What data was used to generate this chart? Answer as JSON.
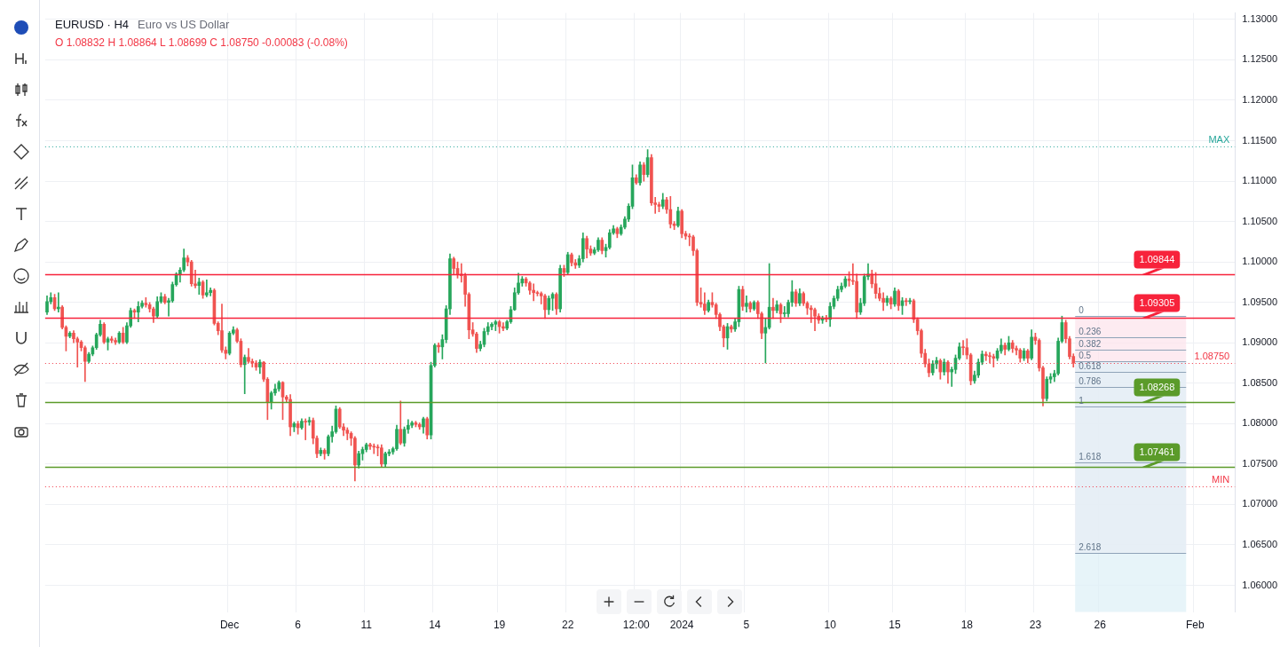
{
  "chart_data": {
    "type": "candlestick",
    "title": "EURUSD · H4",
    "subtitle": "Euro vs US Dollar",
    "annotations": [
      "O 1.08832 H 1.08864 L 1.08699 C 1.08750 -0.00083 (-0.08%)",
      {
        "text": "0",
        "y": 1.0933
      },
      {
        "text": "0.236",
        "y": 1.0907
      },
      {
        "text": "0.382",
        "y": 1.0891
      },
      {
        "text": "0.5",
        "y": 1.0877
      },
      {
        "text": "0.618",
        "y": 1.0864
      },
      {
        "text": "0.786",
        "y": 1.0845
      },
      {
        "text": "1",
        "y": 1.0821
      },
      {
        "text": "1.618",
        "y": 1.0752
      },
      {
        "text": "2.618",
        "y": 1.064
      }
    ],
    "categories": [
      null,
      null,
      null,
      null,
      null,
      null,
      null,
      null,
      null,
      null,
      null,
      null,
      null,
      null,
      null,
      null,
      null,
      null,
      null,
      null,
      null,
      null,
      null,
      null,
      null,
      null,
      null,
      null,
      null,
      null,
      null,
      null,
      null,
      null,
      null,
      null,
      null,
      null,
      null,
      null,
      null,
      null,
      null,
      null,
      null,
      null,
      null,
      null,
      "Dec",
      null,
      null,
      null,
      null,
      null,
      null,
      null,
      null,
      null,
      null,
      null,
      null,
      null,
      null,
      null,
      null,
      null,
      "6",
      null,
      null,
      null,
      null,
      null,
      null,
      null,
      null,
      null,
      null,
      null,
      null,
      null,
      null,
      null,
      null,
      null,
      "11",
      null,
      null,
      null,
      null,
      null,
      null,
      null,
      null,
      null,
      null,
      null,
      null,
      null,
      null,
      null,
      null,
      null,
      "14",
      null,
      null,
      null,
      null,
      null,
      null,
      null,
      null,
      null,
      null,
      null,
      null,
      null,
      null,
      null,
      null,
      "19",
      null,
      null,
      null,
      null,
      null,
      null,
      null,
      null,
      null,
      null,
      null,
      null,
      null,
      null,
      null,
      null,
      null,
      "22",
      null,
      null,
      null,
      null,
      null,
      null,
      null,
      null,
      null,
      null,
      null,
      null,
      null,
      null,
      null,
      null,
      null,
      "12:00",
      null,
      null,
      null,
      null,
      null,
      null,
      null,
      null,
      null,
      null,
      null,
      "2024",
      null,
      null,
      null,
      null,
      null,
      null,
      null,
      null,
      null,
      null,
      null,
      null,
      null,
      null,
      null,
      null,
      "5",
      null,
      null,
      null,
      null,
      null,
      null,
      null,
      null,
      null,
      null,
      null,
      null,
      null,
      null,
      null,
      null,
      null,
      null,
      null,
      null,
      null,
      "10",
      null,
      null,
      null,
      null,
      null,
      null,
      null,
      null,
      null,
      null,
      null,
      null,
      null,
      null,
      null,
      null,
      "15",
      null,
      null,
      null,
      null,
      null,
      null,
      null,
      null,
      null,
      null,
      null,
      null,
      null,
      null,
      null,
      null,
      null,
      null,
      "18",
      null,
      null,
      null,
      null,
      null,
      null,
      null,
      null,
      null,
      null,
      null,
      null,
      null,
      null,
      null,
      null,
      null,
      "23",
      null,
      null,
      null,
      null,
      null,
      null,
      null,
      null,
      null,
      null,
      null,
      null,
      null,
      null,
      null,
      null,
      "26",
      null,
      null,
      null,
      null,
      null,
      null,
      null,
      null,
      null,
      null,
      null,
      null,
      null,
      null,
      null,
      null,
      null,
      null,
      null,
      null,
      null,
      null,
      null,
      null,
      "Feb",
      null,
      null,
      null,
      null,
      null,
      null,
      null,
      null,
      null,
      null
    ],
    "ohlc": [
      [
        1.0938,
        1.0958,
        1.0935,
        1.0951
      ],
      [
        1.0951,
        1.0962,
        1.0948,
        1.0956
      ],
      [
        1.0956,
        1.096,
        1.094,
        1.0942
      ],
      [
        1.0942,
        1.0962,
        1.0938,
        1.0944
      ],
      [
        1.0944,
        1.0946,
        1.0917,
        1.0919
      ],
      [
        1.0919,
        1.0921,
        1.089,
        1.0908
      ],
      [
        1.0908,
        1.0914,
        1.0906,
        1.0912
      ],
      [
        1.0912,
        1.0915,
        1.09,
        1.0905
      ],
      [
        1.0905,
        1.0907,
        1.087,
        1.0901
      ],
      [
        1.0901,
        1.0903,
        1.089,
        1.0894
      ],
      [
        1.0894,
        1.0896,
        1.0852,
        1.0877
      ],
      [
        1.0877,
        1.0888,
        1.0875,
        1.0886
      ],
      [
        1.0886,
        1.0896,
        1.0884,
        1.0894
      ],
      [
        1.0894,
        1.0912,
        1.0892,
        1.091
      ],
      [
        1.091,
        1.0928,
        1.0908,
        1.0923
      ],
      [
        1.0923,
        1.0925,
        1.0899,
        1.0901
      ],
      [
        1.0901,
        1.0907,
        1.0891,
        1.0905
      ],
      [
        1.0905,
        1.0908,
        1.09,
        1.0903
      ],
      [
        1.0903,
        1.0906,
        1.0898,
        1.0901
      ],
      [
        1.0901,
        1.0914,
        1.0899,
        1.0912
      ],
      [
        1.0912,
        1.0919,
        1.0899,
        1.0901
      ],
      [
        1.0901,
        1.0925,
        1.0899,
        1.0921
      ],
      [
        1.0921,
        1.0943,
        1.0919,
        1.094
      ],
      [
        1.094,
        1.0942,
        1.093,
        1.0938
      ],
      [
        1.0938,
        1.0951,
        1.0926,
        1.0945
      ],
      [
        1.0945,
        1.0952,
        1.0943,
        1.0949
      ],
      [
        1.0949,
        1.0956,
        1.0944,
        1.0947
      ],
      [
        1.0947,
        1.095,
        1.0938,
        1.0942
      ],
      [
        1.0942,
        1.0944,
        1.0925,
        1.0933
      ],
      [
        1.0933,
        1.0957,
        1.0931,
        1.0951
      ],
      [
        1.0951,
        1.0962,
        1.0949,
        1.0957
      ],
      [
        1.0957,
        1.096,
        1.0948,
        1.095
      ],
      [
        1.095,
        1.0955,
        1.0933,
        1.0952
      ],
      [
        1.0952,
        1.0975,
        1.095,
        1.0972
      ],
      [
        1.0972,
        1.0987,
        1.097,
        1.0985
      ],
      [
        1.0985,
        1.0993,
        1.0975,
        1.099
      ],
      [
        1.099,
        1.1016,
        1.0988,
        1.1005
      ],
      [
        1.1005,
        1.1008,
        1.0995,
        1.1
      ],
      [
        1.1,
        1.1002,
        1.097,
        1.0973
      ],
      [
        1.0973,
        1.099,
        1.0968,
        1.0971
      ],
      [
        1.0971,
        1.098,
        1.096,
        1.0975
      ],
      [
        1.0975,
        1.0977,
        1.0955,
        1.0959
      ],
      [
        1.0959,
        1.0978,
        1.0957,
        1.0962
      ],
      [
        1.0962,
        1.0968,
        1.0958,
        1.0965
      ],
      [
        1.0965,
        1.0967,
        1.0922,
        1.0924
      ],
      [
        1.0924,
        1.0926,
        1.091,
        1.0915
      ],
      [
        1.0915,
        1.0948,
        1.0888,
        1.0891
      ],
      [
        1.0891,
        1.0895,
        1.088,
        1.0887
      ],
      [
        1.0887,
        1.0914,
        1.0885,
        1.0912
      ],
      [
        1.0912,
        1.092,
        1.091,
        1.0916
      ],
      [
        1.0916,
        1.0918,
        1.09,
        1.0902
      ],
      [
        1.0902,
        1.0905,
        1.087,
        1.0873
      ],
      [
        1.0873,
        1.0885,
        1.0837,
        1.0882
      ],
      [
        1.0882,
        1.0893,
        1.0875,
        1.0877
      ],
      [
        1.0877,
        1.088,
        1.087,
        1.0875
      ],
      [
        1.0875,
        1.0878,
        1.0866,
        1.087
      ],
      [
        1.087,
        1.0879,
        1.0862,
        1.0876
      ],
      [
        1.0876,
        1.0877,
        1.0852,
        1.0855
      ],
      [
        1.0855,
        1.0857,
        1.0805,
        1.0826
      ],
      [
        1.0826,
        1.084,
        1.0818,
        1.0838
      ],
      [
        1.0838,
        1.0849,
        1.0835,
        1.0843
      ],
      [
        1.0843,
        1.0853,
        1.084,
        1.0851
      ],
      [
        1.0851,
        1.0852,
        1.0805,
        1.0833
      ],
      [
        1.0833,
        1.0835,
        1.0826,
        1.083
      ],
      [
        1.083,
        1.0836,
        1.0785,
        1.0796
      ],
      [
        1.0796,
        1.0802,
        1.079,
        1.08
      ],
      [
        1.08,
        1.0803,
        1.0787,
        1.0795
      ],
      [
        1.0795,
        1.0806,
        1.0793,
        1.0803
      ],
      [
        1.0803,
        1.0806,
        1.078,
        1.0802
      ],
      [
        1.0802,
        1.0808,
        1.0798,
        1.0804
      ],
      [
        1.0804,
        1.0807,
        1.0775,
        1.0782
      ],
      [
        1.0782,
        1.0785,
        1.0758,
        1.0763
      ],
      [
        1.0763,
        1.077,
        1.076,
        1.0767
      ],
      [
        1.0767,
        1.0769,
        1.0756,
        1.0763
      ],
      [
        1.0763,
        1.0786,
        1.076,
        1.0784
      ],
      [
        1.0784,
        1.0797,
        1.0777,
        1.079
      ],
      [
        1.079,
        1.0822,
        1.0788,
        1.0818
      ],
      [
        1.0818,
        1.082,
        1.0794,
        1.0796
      ],
      [
        1.0796,
        1.08,
        1.0785,
        1.0792
      ],
      [
        1.0792,
        1.0795,
        1.078,
        1.0788
      ],
      [
        1.0788,
        1.079,
        1.0773,
        1.0782
      ],
      [
        1.0782,
        1.0784,
        1.0729,
        1.0749
      ],
      [
        1.0749,
        1.0766,
        1.0745,
        1.0763
      ],
      [
        1.0763,
        1.0771,
        1.0755,
        1.0768
      ],
      [
        1.0768,
        1.0776,
        1.0765,
        1.0774
      ],
      [
        1.0774,
        1.0776,
        1.0768,
        1.0772
      ],
      [
        1.0772,
        1.0775,
        1.0763,
        1.0771
      ],
      [
        1.0771,
        1.0774,
        1.076,
        1.077
      ],
      [
        1.077,
        1.0774,
        1.0746,
        1.075
      ],
      [
        1.075,
        1.0765,
        1.0747,
        1.0763
      ],
      [
        1.0763,
        1.0768,
        1.076,
        1.0765
      ],
      [
        1.0765,
        1.0771,
        1.0762,
        1.0769
      ],
      [
        1.0769,
        1.0798,
        1.0767,
        1.0793
      ],
      [
        1.0793,
        1.0828,
        1.0774,
        1.0776
      ],
      [
        1.0776,
        1.0796,
        1.0772,
        1.0793
      ],
      [
        1.0793,
        1.0805,
        1.0788,
        1.0798
      ],
      [
        1.0798,
        1.0803,
        1.0795,
        1.0801
      ],
      [
        1.0801,
        1.0803,
        1.0796,
        1.0799
      ],
      [
        1.0799,
        1.0801,
        1.0793,
        1.0796
      ],
      [
        1.0796,
        1.0808,
        1.0788,
        1.0806
      ],
      [
        1.0806,
        1.0808,
        1.0781,
        1.0786
      ],
      [
        1.0786,
        1.0876,
        1.0781,
        1.0872
      ],
      [
        1.0872,
        1.0899,
        1.087,
        1.0897
      ],
      [
        1.0897,
        1.09,
        1.0888,
        1.0895
      ],
      [
        1.0895,
        1.091,
        1.088,
        1.0904
      ],
      [
        1.0904,
        1.0946,
        1.09,
        1.0942
      ],
      [
        1.0942,
        1.101,
        1.0935,
        1.1004
      ],
      [
        1.1004,
        1.1006,
        1.0985,
        1.0992
      ],
      [
        1.0992,
        1.1,
        1.098,
        1.0985
      ],
      [
        1.0985,
        1.0998,
        1.0975,
        1.0983
      ],
      [
        1.0983,
        1.0986,
        1.0945,
        1.096
      ],
      [
        1.096,
        1.0962,
        1.0905,
        1.0916
      ],
      [
        1.0916,
        1.0925,
        1.0908,
        1.0911
      ],
      [
        1.0911,
        1.0913,
        1.0888,
        1.0893
      ],
      [
        1.0893,
        1.0902,
        1.089,
        1.0898
      ],
      [
        1.0898,
        1.0918,
        1.0895,
        1.0914
      ],
      [
        1.0914,
        1.0925,
        1.091,
        1.092
      ],
      [
        1.092,
        1.0925,
        1.0916,
        1.0923
      ],
      [
        1.0923,
        1.0928,
        1.0915,
        1.0926
      ],
      [
        1.0926,
        1.0928,
        1.0912,
        1.092
      ],
      [
        1.092,
        1.0925,
        1.0915,
        1.0918
      ],
      [
        1.0918,
        1.0928,
        1.0916,
        1.0926
      ],
      [
        1.0926,
        1.0945,
        1.0924,
        1.0941
      ],
      [
        1.0941,
        1.0968,
        1.094,
        1.0962
      ],
      [
        1.0962,
        1.0986,
        1.096,
        1.0974
      ],
      [
        1.0974,
        1.0982,
        1.097,
        1.0979
      ],
      [
        1.0979,
        1.0981,
        1.097,
        1.0974
      ],
      [
        1.0974,
        1.0976,
        1.096,
        1.0965
      ],
      [
        1.0965,
        1.0973,
        1.0952,
        1.0962
      ],
      [
        1.0962,
        1.0964,
        1.0958,
        1.0961
      ],
      [
        1.0961,
        1.0963,
        1.0948,
        1.0958
      ],
      [
        1.0958,
        1.096,
        1.093,
        1.0941
      ],
      [
        1.0941,
        1.0958,
        1.0935,
        1.0955
      ],
      [
        1.0955,
        1.0962,
        1.094,
        1.096
      ],
      [
        1.096,
        1.0962,
        1.0935,
        1.0942
      ],
      [
        1.0942,
        1.0996,
        1.0938,
        1.0992
      ],
      [
        1.0992,
        1.0996,
        1.0982,
        1.0987
      ],
      [
        1.0987,
        1.1012,
        1.0985,
        1.1009
      ],
      [
        1.1009,
        1.1011,
        1.0995,
        1.0999
      ],
      [
        1.0999,
        1.1003,
        1.0992,
        1.0996
      ],
      [
        1.0996,
        1.1008,
        1.0993,
        1.1004
      ],
      [
        1.1004,
        1.1036,
        1.1,
        1.1029
      ],
      [
        1.1029,
        1.1032,
        1.1005,
        1.1016
      ],
      [
        1.1016,
        1.102,
        1.1008,
        1.1011
      ],
      [
        1.1011,
        1.1018,
        1.1009,
        1.1015
      ],
      [
        1.1015,
        1.103,
        1.1013,
        1.1027
      ],
      [
        1.1027,
        1.103,
        1.101,
        1.1014
      ],
      [
        1.1014,
        1.1022,
        1.1006,
        1.1018
      ],
      [
        1.1018,
        1.104,
        1.1016,
        1.1036
      ],
      [
        1.1036,
        1.1045,
        1.1034,
        1.1041
      ],
      [
        1.1041,
        1.1043,
        1.103,
        1.1035
      ],
      [
        1.1035,
        1.1046,
        1.1033,
        1.1043
      ],
      [
        1.1043,
        1.1056,
        1.1041,
        1.1053
      ],
      [
        1.1053,
        1.1072,
        1.105,
        1.1069
      ],
      [
        1.1069,
        1.112,
        1.1066,
        1.1104
      ],
      [
        1.1104,
        1.1108,
        1.1096,
        1.1098
      ],
      [
        1.1098,
        1.1124,
        1.1095,
        1.112
      ],
      [
        1.112,
        1.1123,
        1.11,
        1.1108
      ],
      [
        1.1108,
        1.1139,
        1.1105,
        1.1129
      ],
      [
        1.1129,
        1.1133,
        1.107,
        1.1073
      ],
      [
        1.1073,
        1.108,
        1.106,
        1.1071
      ],
      [
        1.1071,
        1.1074,
        1.1062,
        1.1069
      ],
      [
        1.1069,
        1.1085,
        1.1066,
        1.1077
      ],
      [
        1.1077,
        1.108,
        1.106,
        1.1065
      ],
      [
        1.1065,
        1.1081,
        1.1042,
        1.1047
      ],
      [
        1.1047,
        1.105,
        1.104,
        1.1045
      ],
      [
        1.1045,
        1.1068,
        1.1043,
        1.1063
      ],
      [
        1.1063,
        1.1065,
        1.103,
        1.1035
      ],
      [
        1.1035,
        1.1038,
        1.1028,
        1.1032
      ],
      [
        1.1032,
        1.1035,
        1.102,
        1.1031
      ],
      [
        1.1031,
        1.1033,
        1.1008,
        1.1014
      ],
      [
        1.1014,
        1.1016,
        1.0946,
        1.095
      ],
      [
        1.095,
        1.0968,
        1.0944,
        1.0948
      ],
      [
        1.0948,
        1.0962,
        1.0935,
        1.094
      ],
      [
        1.094,
        1.0953,
        1.0938,
        1.095
      ],
      [
        1.095,
        1.0962,
        1.0944,
        1.0947
      ],
      [
        1.0947,
        1.0949,
        1.093,
        1.0935
      ],
      [
        1.0935,
        1.0937,
        1.0915,
        1.092
      ],
      [
        1.092,
        1.0922,
        1.0895,
        1.0906
      ],
      [
        1.0906,
        1.0924,
        1.0892,
        1.092
      ],
      [
        1.092,
        1.0922,
        1.0913,
        1.0917
      ],
      [
        1.0917,
        1.093,
        1.0914,
        1.0926
      ],
      [
        1.0926,
        1.097,
        1.092,
        1.0966
      ],
      [
        1.0966,
        1.097,
        1.094,
        1.0945
      ],
      [
        1.0945,
        1.0958,
        1.0938,
        1.0949
      ],
      [
        1.0949,
        1.0951,
        1.0938,
        1.0942
      ],
      [
        1.0942,
        1.0952,
        1.094,
        1.095
      ],
      [
        1.095,
        1.0952,
        1.093,
        1.0936
      ],
      [
        1.0936,
        1.0938,
        1.0905,
        1.0912
      ],
      [
        1.0912,
        1.093,
        1.0875,
        1.0919
      ],
      [
        1.0919,
        1.0998,
        1.0917,
        1.0944
      ],
      [
        1.0944,
        1.0955,
        1.093,
        1.094
      ],
      [
        1.094,
        1.0952,
        1.0937,
        1.0947
      ],
      [
        1.0947,
        1.0949,
        1.0925,
        1.0936
      ],
      [
        1.0936,
        1.0945,
        1.0932,
        1.0936
      ],
      [
        1.0936,
        1.0953,
        1.0932,
        1.095
      ],
      [
        1.095,
        1.0977,
        1.0945,
        1.0963
      ],
      [
        1.0963,
        1.0966,
        1.0945,
        1.0949
      ],
      [
        1.0949,
        1.0967,
        1.0946,
        1.0961
      ],
      [
        1.0961,
        1.0963,
        1.0946,
        1.0949
      ],
      [
        1.0949,
        1.0951,
        1.0935,
        1.0943
      ],
      [
        1.0943,
        1.0946,
        1.0925,
        1.0941
      ],
      [
        1.0941,
        1.0943,
        1.0915,
        1.0933
      ],
      [
        1.0933,
        1.0936,
        1.0924,
        1.0928
      ],
      [
        1.0928,
        1.0933,
        1.0924,
        1.093
      ],
      [
        1.093,
        1.0934,
        1.0926,
        1.0929
      ],
      [
        1.0929,
        1.095,
        1.092,
        1.0945
      ],
      [
        1.0945,
        1.0958,
        1.0942,
        1.0955
      ],
      [
        1.0955,
        1.097,
        1.0952,
        1.0966
      ],
      [
        1.0966,
        1.0974,
        1.0963,
        1.097
      ],
      [
        1.097,
        1.0982,
        1.0968,
        1.0979
      ],
      [
        1.0979,
        1.0988,
        1.097,
        1.0977
      ],
      [
        1.0977,
        1.0998,
        1.0972,
        1.0976
      ],
      [
        1.0976,
        1.0985,
        1.093,
        1.0938
      ],
      [
        1.0938,
        1.0955,
        1.0935,
        1.0949
      ],
      [
        1.0949,
        1.0985,
        1.0946,
        1.0982
      ],
      [
        1.0982,
        1.0998,
        1.0978,
        1.0985
      ],
      [
        1.0985,
        1.099,
        1.0968,
        1.0973
      ],
      [
        1.0973,
        1.0987,
        1.0955,
        1.0961
      ],
      [
        1.0961,
        1.0968,
        1.0952,
        1.0955
      ],
      [
        1.0955,
        1.0962,
        1.094,
        1.095
      ],
      [
        1.095,
        1.0958,
        1.0946,
        1.0955
      ],
      [
        1.0955,
        1.0957,
        1.0942,
        1.0948
      ],
      [
        1.0948,
        1.0968,
        1.0945,
        1.0964
      ],
      [
        1.0964,
        1.0966,
        1.094,
        1.0946
      ],
      [
        1.0946,
        1.0956,
        1.0935,
        1.0952
      ],
      [
        1.0952,
        1.0955,
        1.0946,
        1.0951
      ],
      [
        1.0951,
        1.0955,
        1.0948,
        1.0952
      ],
      [
        1.0952,
        1.0954,
        1.0925,
        1.0929
      ],
      [
        1.0929,
        1.0931,
        1.091,
        1.0915
      ],
      [
        1.0915,
        1.0917,
        1.0882,
        1.0887
      ],
      [
        1.0887,
        1.0892,
        1.087,
        1.0874
      ],
      [
        1.0874,
        1.088,
        1.0858,
        1.0863
      ],
      [
        1.0863,
        1.0878,
        1.086,
        1.0874
      ],
      [
        1.0874,
        1.0882,
        1.0868,
        1.0878
      ],
      [
        1.0878,
        1.088,
        1.0855,
        1.0864
      ],
      [
        1.0864,
        1.088,
        1.086,
        1.0876
      ],
      [
        1.0876,
        1.0878,
        1.085,
        1.0864
      ],
      [
        1.0864,
        1.087,
        1.0846,
        1.0867
      ],
      [
        1.0867,
        1.0885,
        1.0862,
        1.0881
      ],
      [
        1.0881,
        1.09,
        1.0879,
        1.0895
      ],
      [
        1.0895,
        1.0903,
        1.0885,
        1.0894
      ],
      [
        1.0894,
        1.0905,
        1.088,
        1.0885
      ],
      [
        1.0885,
        1.0887,
        1.0848,
        1.0853
      ],
      [
        1.0853,
        1.0865,
        1.085,
        1.086
      ],
      [
        1.086,
        1.088,
        1.0857,
        1.0876
      ],
      [
        1.0876,
        1.089,
        1.0873,
        1.0886
      ],
      [
        1.0886,
        1.0889,
        1.0878,
        1.0884
      ],
      [
        1.0884,
        1.0888,
        1.0875,
        1.0883
      ],
      [
        1.0883,
        1.0886,
        1.087,
        1.0881
      ],
      [
        1.0881,
        1.0893,
        1.0878,
        1.089
      ],
      [
        1.089,
        1.0905,
        1.0887,
        1.0897
      ],
      [
        1.0897,
        1.09,
        1.0885,
        1.0892
      ],
      [
        1.0892,
        1.0908,
        1.089,
        1.09
      ],
      [
        1.09,
        1.0903,
        1.0888,
        1.0893
      ],
      [
        1.0893,
        1.0896,
        1.0885,
        1.0891
      ],
      [
        1.0891,
        1.0893,
        1.0876,
        1.0881
      ],
      [
        1.0881,
        1.0893,
        1.0878,
        1.089
      ],
      [
        1.089,
        1.0892,
        1.0875,
        1.0881
      ],
      [
        1.0881,
        1.0916,
        1.0879,
        1.0907
      ],
      [
        1.0907,
        1.0912,
        1.0898,
        1.0903
      ],
      [
        1.0903,
        1.0905,
        1.0865,
        1.0869
      ],
      [
        1.0869,
        1.0871,
        1.0822,
        1.0831
      ],
      [
        1.0831,
        1.0858,
        1.0828,
        1.0855
      ],
      [
        1.0855,
        1.0862,
        1.085,
        1.0858
      ],
      [
        1.0858,
        1.0866,
        1.0852,
        1.0862
      ],
      [
        1.0862,
        1.0906,
        1.086,
        1.0902
      ],
      [
        1.0902,
        1.0933,
        1.09,
        1.0925
      ],
      [
        1.0925,
        1.0928,
        1.09,
        1.0905
      ],
      [
        1.0905,
        1.0908,
        1.088,
        1.0883
      ],
      [
        1.08832,
        1.08864,
        1.08699,
        1.0875
      ],
      null,
      null,
      null,
      null,
      null,
      null,
      null,
      null,
      null,
      null,
      null,
      null,
      null,
      null,
      null,
      null,
      null,
      null,
      null,
      null,
      null,
      null,
      null,
      null,
      null,
      null,
      null,
      null,
      null,
      null,
      null,
      null,
      null,
      null,
      null,
      null,
      null,
      null,
      null,
      null,
      null,
      null
    ],
    "ylim": [
      1.0567,
      1.1308
    ],
    "yticks": [
      {
        "value": 1.06,
        "label": "1.06000"
      },
      {
        "value": 1.065,
        "label": "1.06500"
      },
      {
        "value": 1.07,
        "label": "1.07000"
      },
      {
        "value": 1.075,
        "label": "1.07500"
      },
      {
        "value": 1.08,
        "label": "1.08000"
      },
      {
        "value": 1.085,
        "label": "1.08500"
      },
      {
        "value": 1.09,
        "label": "1.09000"
      },
      {
        "value": 1.095,
        "label": "1.09500"
      },
      {
        "value": 1.1,
        "label": "1.10000"
      },
      {
        "value": 1.105,
        "label": "1.10500"
      },
      {
        "value": 1.11,
        "label": "1.11000"
      },
      {
        "value": 1.115,
        "label": "1.11500"
      },
      {
        "value": 1.12,
        "label": "1.12000"
      },
      {
        "value": 1.125,
        "label": "1.12500"
      },
      {
        "value": 1.13,
        "label": "1.13000"
      }
    ],
    "grid": true,
    "bands": [
      {
        "axis": "y",
        "from": 1.064,
        "to": 1.0933,
        "color": "#fce4ec"
      },
      {
        "axis": "y",
        "from": 1.0567,
        "to": 1.0877,
        "color": "#dff0f7"
      }
    ],
    "ref_lines": [
      {
        "axis": "y",
        "value": 1.09844,
        "label": "1.09844",
        "color": "#f7233b",
        "line_style": "solid"
      },
      {
        "axis": "y",
        "value": 1.09305,
        "label": "1.09305",
        "color": "#f7233b",
        "line_style": "solid"
      },
      {
        "axis": "y",
        "value": 1.08268,
        "label": "1.08268",
        "color": "#5b9b2a",
        "line_style": "solid"
      },
      {
        "axis": "y",
        "value": 1.07461,
        "label": "1.07461",
        "color": "#5b9b2a",
        "line_style": "solid"
      },
      {
        "axis": "y",
        "value": 1.0875,
        "label": "1.08750",
        "color": "#f23645",
        "line_style": "dotted"
      },
      {
        "axis": "y",
        "value": 1.1143,
        "label": "MAX",
        "color": "#26a69a",
        "line_style": "dotted"
      },
      {
        "axis": "y",
        "value": 1.0722,
        "label": "MIN",
        "color": "#f23645",
        "line_style": "dotted"
      },
      {
        "axis": "y",
        "value": 1.0933
      },
      {
        "axis": "y",
        "value": 1.0907
      },
      {
        "axis": "y",
        "value": 1.0891
      },
      {
        "axis": "y",
        "value": 1.0877
      },
      {
        "axis": "y",
        "value": 1.0864
      },
      {
        "axis": "y",
        "value": 1.0845
      },
      {
        "axis": "y",
        "value": 1.0821
      },
      {
        "axis": "y",
        "value": 1.0752
      },
      {
        "axis": "y",
        "value": 1.064
      }
    ]
  }
}
